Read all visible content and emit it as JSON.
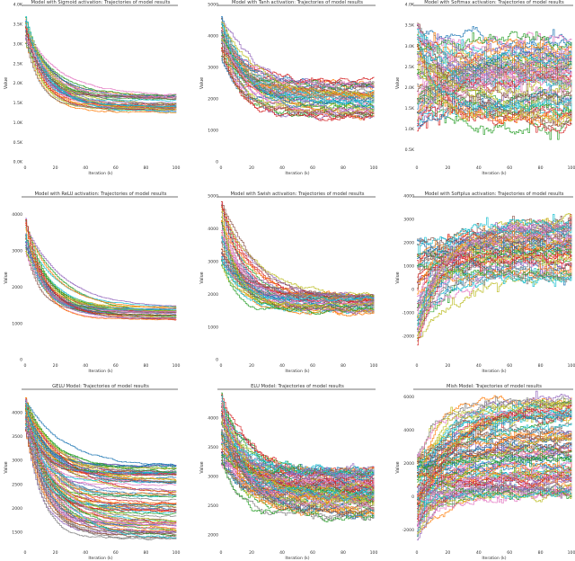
{
  "figure": {
    "series_palette": [
      "#1f77b4",
      "#ff7f0e",
      "#2ca02c",
      "#d62728",
      "#9467bd",
      "#8c564b",
      "#e377c2",
      "#7f7f7f",
      "#bcbd22",
      "#17becf"
    ]
  },
  "chart_data": [
    {
      "type": "line",
      "title": "Model with Sigmoid activation: Trajectories of model results",
      "xlabel": "Iteration (k)",
      "ylabel": "Value",
      "xlim": [
        0,
        100
      ],
      "ylim": [
        0,
        4000
      ],
      "x_ticks": [
        0,
        20,
        40,
        60,
        80,
        100
      ],
      "y_ticks": [
        0,
        500,
        1000,
        1500,
        2000,
        2500,
        3000,
        3500,
        4000
      ],
      "y_tick_labels": [
        "0.0K",
        "0.5K",
        "1.0K",
        "1.5K",
        "2.0K",
        "2.5K",
        "3.0K",
        "3.5K",
        "4.0K"
      ],
      "grid": false,
      "legend": false,
      "trajectories": {
        "count": 40,
        "shape": "decay",
        "start": [
          3000,
          3700
        ],
        "end": [
          1250,
          1720
        ],
        "noise": 25
      }
    },
    {
      "type": "line",
      "title": "Model with Tanh activation: Trajectories of model results",
      "xlabel": "Iteration (k)",
      "ylabel": "Value",
      "xlim": [
        0,
        100
      ],
      "ylim": [
        0,
        5000
      ],
      "x_ticks": [
        0,
        20,
        40,
        60,
        80,
        100
      ],
      "y_ticks": [
        0,
        1000,
        2000,
        3000,
        4000,
        5000
      ],
      "y_tick_labels": [
        "0",
        "1000",
        "2000",
        "3000",
        "4000",
        "5000"
      ],
      "grid": false,
      "legend": false,
      "trajectories": {
        "count": 50,
        "shape": "decay",
        "start": [
          3200,
          4700
        ],
        "end": [
          1350,
          2550
        ],
        "noise": 120
      }
    },
    {
      "type": "line",
      "title": "Model with Softmax activation: Trajectories of model results",
      "xlabel": "Iteration (k)",
      "ylabel": "Value",
      "xlim": [
        0,
        100
      ],
      "ylim": [
        200,
        4000
      ],
      "x_ticks": [
        0,
        20,
        40,
        60,
        80,
        100
      ],
      "y_ticks": [
        500,
        1000,
        1500,
        2000,
        2500,
        3000,
        3500,
        4000
      ],
      "y_tick_labels": [
        "0.5K",
        "1.0K",
        "1.5K",
        "2.0K",
        "2.5K",
        "3.0K",
        "3.5K",
        "4.0K"
      ],
      "grid": false,
      "legend": false,
      "trajectories": {
        "count": 60,
        "shape": "growth",
        "start": [
          1000,
          3600
        ],
        "end": [
          1000,
          3200
        ],
        "noise": 180
      }
    },
    {
      "type": "line",
      "title": "Model with ReLU activation: Trajectories of model results",
      "xlabel": "Iteration (k)",
      "ylabel": "Value",
      "xlim": [
        0,
        100
      ],
      "ylim": [
        0,
        4500
      ],
      "x_ticks": [
        0,
        20,
        40,
        60,
        80,
        100
      ],
      "y_ticks": [
        0,
        1000,
        2000,
        3000,
        4000
      ],
      "y_tick_labels": [
        "0",
        "1000",
        "2000",
        "3000",
        "4000"
      ],
      "grid": false,
      "legend": false,
      "trajectories": {
        "count": 35,
        "shape": "decay",
        "start": [
          2900,
          3900
        ],
        "end": [
          1100,
          1450
        ],
        "noise": 15
      }
    },
    {
      "type": "line",
      "title": "Model with Swish activation: Trajectories of model results",
      "xlabel": "Iteration (k)",
      "ylabel": "Value",
      "xlim": [
        0,
        100
      ],
      "ylim": [
        0,
        5000
      ],
      "x_ticks": [
        0,
        20,
        40,
        60,
        80,
        100
      ],
      "y_ticks": [
        0,
        1000,
        2000,
        3000,
        4000,
        5000
      ],
      "y_tick_labels": [
        "0",
        "1000",
        "2000",
        "3000",
        "4000",
        "5000"
      ],
      "grid": false,
      "legend": false,
      "trajectories": {
        "count": 50,
        "shape": "decay",
        "start": [
          2800,
          4800
        ],
        "end": [
          1400,
          2000
        ],
        "noise": 80
      }
    },
    {
      "type": "line",
      "title": "Model with Softplus activation: Trajectories of model results",
      "xlabel": "Iteration (k)",
      "ylabel": "Value",
      "xlim": [
        0,
        100
      ],
      "ylim": [
        -3000,
        4000
      ],
      "x_ticks": [
        0,
        20,
        40,
        60,
        80,
        100
      ],
      "y_ticks": [
        -2000,
        -1000,
        0,
        1000,
        2000,
        3000,
        4000
      ],
      "y_tick_labels": [
        "-2000",
        "-1000",
        "0",
        "1000",
        "2000",
        "3000",
        "4000"
      ],
      "grid": false,
      "legend": false,
      "trajectories": {
        "count": 60,
        "shape": "growth",
        "start": [
          -2500,
          2500
        ],
        "end": [
          500,
          3000
        ],
        "noise": 250
      }
    },
    {
      "type": "line",
      "title": "GELU Model: Trajectories of model results",
      "xlabel": "Iteration (k)",
      "ylabel": "Value",
      "xlim": [
        0,
        100
      ],
      "ylim": [
        1200,
        4500
      ],
      "x_ticks": [
        0,
        20,
        40,
        60,
        80,
        100
      ],
      "y_ticks": [
        1500,
        2000,
        2500,
        3000,
        3500,
        4000
      ],
      "y_tick_labels": [
        "1500",
        "2000",
        "2500",
        "3000",
        "3500",
        "4000"
      ],
      "grid": false,
      "legend": false,
      "trajectories": {
        "count": 90,
        "shape": "decay",
        "start": [
          3600,
          4300
        ],
        "end": [
          1350,
          2900
        ],
        "noise": 25
      }
    },
    {
      "type": "line",
      "title": "ELU Model: Trajectories of model results",
      "xlabel": "Iteration (k)",
      "ylabel": "Value",
      "xlim": [
        0,
        100
      ],
      "ylim": [
        1800,
        4500
      ],
      "x_ticks": [
        0,
        20,
        40,
        60,
        80,
        100
      ],
      "y_ticks": [
        2000,
        2500,
        3000,
        3500,
        4000
      ],
      "y_tick_labels": [
        "2000",
        "2500",
        "3000",
        "3500",
        "4000"
      ],
      "grid": false,
      "legend": false,
      "trajectories": {
        "count": 90,
        "shape": "decay",
        "start": [
          3200,
          4400
        ],
        "end": [
          2300,
          3100
        ],
        "noise": 90
      }
    },
    {
      "type": "line",
      "title": "Mish Model: Trajectories of model results",
      "xlabel": "Iteration (k)",
      "ylabel": "Value",
      "xlim": [
        0,
        100
      ],
      "ylim": [
        -3000,
        6500
      ],
      "x_ticks": [
        0,
        20,
        40,
        60,
        80,
        100
      ],
      "y_ticks": [
        -2000,
        0,
        2000,
        4000,
        6000
      ],
      "y_tick_labels": [
        "-2000",
        "0",
        "2000",
        "4000",
        "6000"
      ],
      "grid": false,
      "legend": false,
      "trajectories": {
        "count": 90,
        "shape": "growth",
        "start": [
          -2500,
          2500
        ],
        "end": [
          0,
          6000
        ],
        "noise": 280
      }
    }
  ]
}
